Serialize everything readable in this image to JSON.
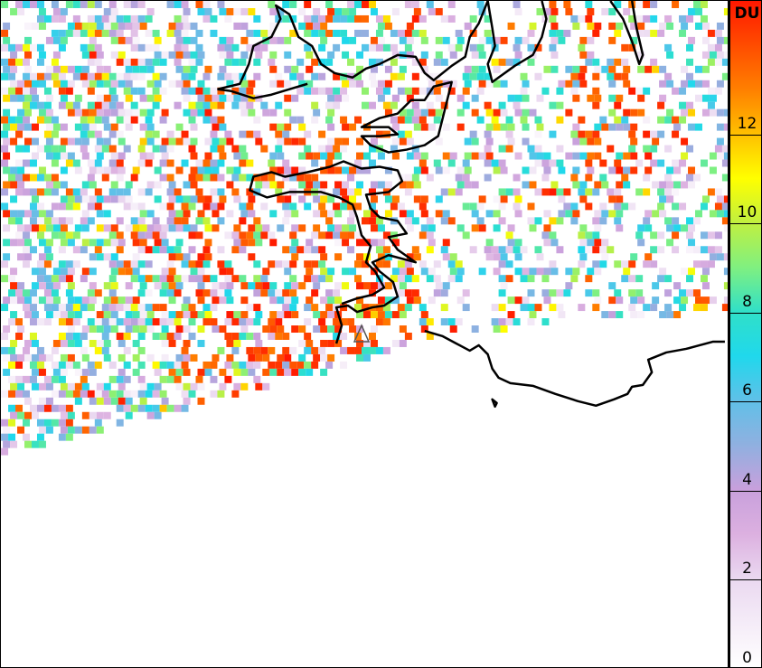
{
  "colorbar": {
    "unit": "DU",
    "min": 0,
    "max": 15,
    "ticks": [
      "0",
      "2",
      "4",
      "6",
      "8",
      "10",
      "12"
    ],
    "stops": [
      {
        "v": 0,
        "c": "#ffffff"
      },
      {
        "v": 2,
        "c": "#ead8f0"
      },
      {
        "v": 3,
        "c": "#dcb0e0"
      },
      {
        "v": 4,
        "c": "#c8a0dc"
      },
      {
        "v": 5,
        "c": "#90b0e0"
      },
      {
        "v": 6,
        "c": "#60c0e8"
      },
      {
        "v": 7,
        "c": "#20d8ec"
      },
      {
        "v": 8,
        "c": "#30e0c8"
      },
      {
        "v": 9,
        "c": "#80f080"
      },
      {
        "v": 10,
        "c": "#c0f040"
      },
      {
        "v": 11,
        "c": "#ffff00"
      },
      {
        "v": 12,
        "c": "#ffc000"
      },
      {
        "v": 13,
        "c": "#ff8000"
      },
      {
        "v": 15,
        "c": "#ff1800"
      }
    ]
  },
  "map": {
    "coastline_color": "#000000",
    "volcano_marker": "triangle"
  }
}
